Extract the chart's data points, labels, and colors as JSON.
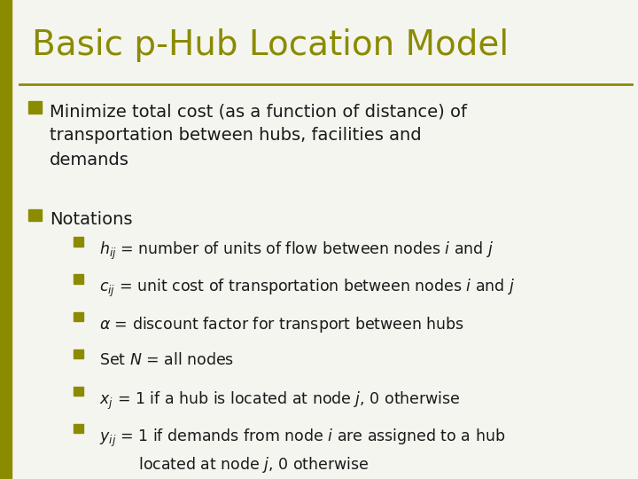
{
  "title": "Basic p-Hub Location Model",
  "title_color": "#8B8B00",
  "title_fontsize": 28,
  "background_color": "#F5F5F0",
  "left_bar_color": "#8B8B00",
  "line_color": "#8B8B00",
  "bullet_color": "#8B8B00",
  "sub_bullet_color": "#8B8B00",
  "text_color": "#1a1a1a",
  "bullet1": "Minimize total cost (as a function of distance) of\ntransportation between hubs, facilities and\ndemands",
  "bullet2": "Notations",
  "sub_bullets": [
    "$h_{ij}$ = number of units of flow between nodes $i$ and $j$",
    "$c_{ij}$ = unit cost of transportation between nodes $i$ and $j$",
    "$\\alpha$ = discount factor for transport between hubs",
    "Set $N$ = all nodes",
    "$x_j$ = 1 if a hub is located at node $j$, 0 otherwise",
    "$y_{ij}$ = 1 if demands from node $i$ are assigned to a hub\n        located at node $j$, 0 otherwise"
  ],
  "main_fontsize": 14,
  "sub_fontsize": 12.5,
  "fig_width": 7.2,
  "fig_height": 5.4,
  "dpi": 100
}
